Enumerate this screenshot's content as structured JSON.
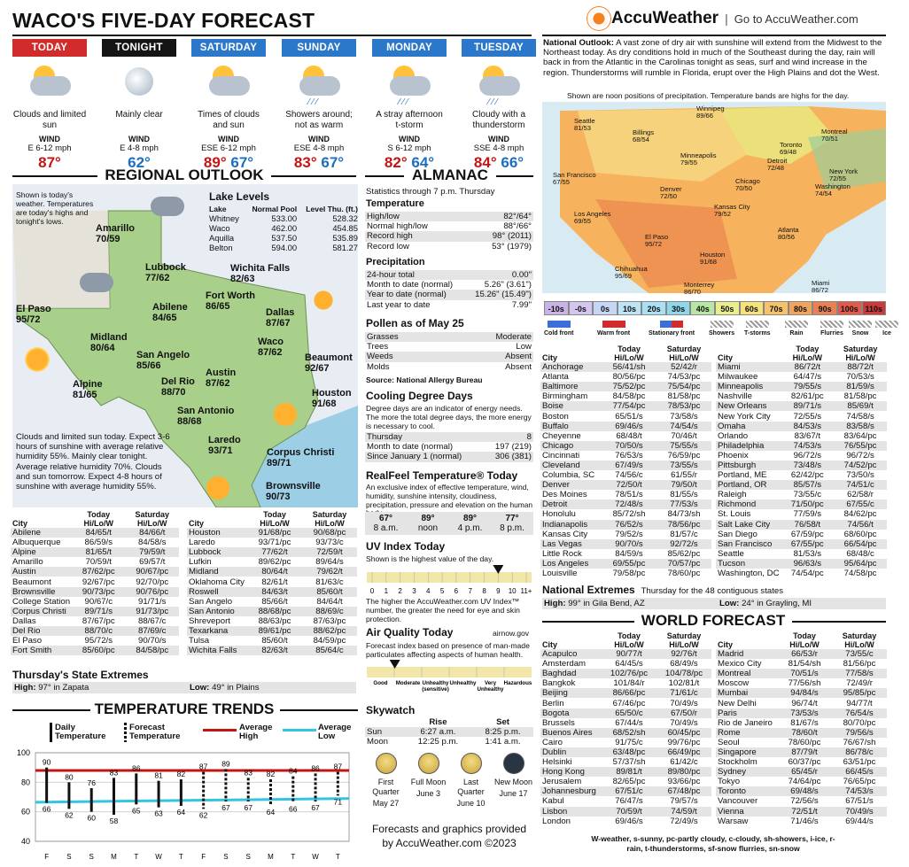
{
  "title": "WACO'S FIVE-DAY FORECAST",
  "brand": {
    "name": "AccuWeather",
    "link": "Go to AccuWeather.com"
  },
  "days": [
    {
      "label": "TODAY",
      "color": "#d12b2b",
      "desc": "Clouds and limited sun",
      "wind_label": "WIND",
      "wind": "E 6-12 mph",
      "hi": "87°",
      "lo": "",
      "icon": "partly-cloudy-icon"
    },
    {
      "label": "TONIGHT",
      "color": "#141414",
      "desc": "Mainly clear",
      "wind_label": "WIND",
      "wind": "E 4-8 mph",
      "hi": "",
      "lo": "62°",
      "icon": "moon-icon"
    },
    {
      "label": "SATURDAY",
      "color": "#2b77c9",
      "desc": "Times of clouds and sun",
      "wind_label": "WIND",
      "wind": "ESE 6-12 mph",
      "hi": "89°",
      "lo": "67°",
      "icon": "partly-cloudy-icon"
    },
    {
      "label": "SUNDAY",
      "color": "#2b77c9",
      "desc": "Showers around; not as warm",
      "wind_label": "WIND",
      "wind": "ESE 4-8 mph",
      "hi": "83°",
      "lo": "67°",
      "icon": "showers-icon"
    },
    {
      "label": "MONDAY",
      "color": "#2b77c9",
      "desc": "A stray afternoon t-storm",
      "wind_label": "WIND",
      "wind": "S 6-12 mph",
      "hi": "82°",
      "lo": "64°",
      "icon": "tstorm-icon"
    },
    {
      "label": "TUESDAY",
      "color": "#2b77c9",
      "desc": "Cloudy with a thunderstorm",
      "wind_label": "WIND",
      "wind": "SSE 4-8 mph",
      "hi": "84°",
      "lo": "66°",
      "icon": "tstorm-icon"
    }
  ],
  "regional": {
    "title": "REGIONAL OUTLOOK",
    "note": "Shown is today's weather. Temperatures are today's highs and tonight's lows.",
    "narrative": "Clouds and limited sun today. Expect 3-6 hours of sunshine with average relative humidity 55%. Mainly clear tonight. Average relative humidity 70%. Clouds and sun tomorrow. Expect 4-8 hours of sunshine with average humidity 55%.",
    "lake_title": "Lake Levels",
    "lake_headers": [
      "Lake",
      "Normal Pool",
      "Level Thu. (ft.)"
    ],
    "lakes": [
      [
        "Whitney",
        "533.00",
        "528.32"
      ],
      [
        "Waco",
        "462.00",
        "454.85"
      ],
      [
        "Aquilla",
        "537.50",
        "535.89"
      ],
      [
        "Belton",
        "594.00",
        "581.27"
      ]
    ],
    "cities": [
      {
        "name": "Amarillo",
        "temps": "70/59"
      },
      {
        "name": "Lubbock",
        "temps": "77/62"
      },
      {
        "name": "Wichita Falls",
        "temps": "82/63"
      },
      {
        "name": "El Paso",
        "temps": "95/72"
      },
      {
        "name": "Abilene",
        "temps": "84/65"
      },
      {
        "name": "Fort Worth",
        "temps": "86/65"
      },
      {
        "name": "Dallas",
        "temps": "87/67"
      },
      {
        "name": "Midland",
        "temps": "80/64"
      },
      {
        "name": "San Angelo",
        "temps": "85/66"
      },
      {
        "name": "Waco",
        "temps": "87/62"
      },
      {
        "name": "Beaumont",
        "temps": "92/67"
      },
      {
        "name": "Alpine",
        "temps": "81/65"
      },
      {
        "name": "Del Rio",
        "temps": "88/70"
      },
      {
        "name": "Austin",
        "temps": "87/62"
      },
      {
        "name": "Houston",
        "temps": "91/68"
      },
      {
        "name": "San Antonio",
        "temps": "88/68"
      },
      {
        "name": "Laredo",
        "temps": "93/71"
      },
      {
        "name": "Corpus Christi",
        "temps": "89/71"
      },
      {
        "name": "Brownsville",
        "temps": "90/73"
      }
    ]
  },
  "tx_table": {
    "headers": [
      "City",
      "Today Hi/Lo/W",
      "Saturday Hi/Lo/W"
    ],
    "left": [
      [
        "Abilene",
        "84/65/t",
        "84/66/t"
      ],
      [
        "Albuquerque",
        "86/59/s",
        "84/58/s"
      ],
      [
        "Alpine",
        "81/65/t",
        "79/59/t"
      ],
      [
        "Amarillo",
        "70/59/t",
        "69/57/t"
      ],
      [
        "Austin",
        "87/62/pc",
        "90/67/pc"
      ],
      [
        "Beaumont",
        "92/67/pc",
        "92/70/pc"
      ],
      [
        "Brownsville",
        "90/73/pc",
        "90/76/pc"
      ],
      [
        "College Station",
        "90/67/c",
        "91/71/s"
      ],
      [
        "Corpus Christi",
        "89/71/s",
        "91/73/pc"
      ],
      [
        "Dallas",
        "87/67/pc",
        "88/67/c"
      ],
      [
        "Del Rio",
        "88/70/c",
        "87/69/c"
      ],
      [
        "El Paso",
        "95/72/s",
        "90/70/s"
      ],
      [
        "Fort Smith",
        "85/60/pc",
        "84/58/pc"
      ]
    ],
    "right": [
      [
        "Houston",
        "91/68/pc",
        "90/68/pc"
      ],
      [
        "Laredo",
        "93/71/pc",
        "93/73/c"
      ],
      [
        "Lubbock",
        "77/62/t",
        "72/59/t"
      ],
      [
        "Lufkin",
        "89/62/pc",
        "89/64/s"
      ],
      [
        "Midland",
        "80/64/t",
        "79/62/t"
      ],
      [
        "Oklahoma City",
        "82/61/t",
        "81/63/c"
      ],
      [
        "Roswell",
        "84/63/t",
        "85/60/t"
      ],
      [
        "San Angelo",
        "85/66/t",
        "84/64/t"
      ],
      [
        "San Antonio",
        "88/68/pc",
        "88/69/c"
      ],
      [
        "Shreveport",
        "88/63/pc",
        "87/63/pc"
      ],
      [
        "Texarkana",
        "89/61/pc",
        "88/62/pc"
      ],
      [
        "Tulsa",
        "85/60/t",
        "84/59/pc"
      ],
      [
        "Wichita Falls",
        "82/63/t",
        "85/64/c"
      ]
    ]
  },
  "state_extremes": {
    "title": "Thursday's State Extremes",
    "high_label": "High:",
    "high": "97° in Zapata",
    "low_label": "Low:",
    "low": "49° in Plains"
  },
  "trends": {
    "title": "TEMPERATURE TRENDS",
    "legend": {
      "daily": "Daily Temperature",
      "forecast": "Forecast Temperature",
      "avg_high": "Average High",
      "avg_low": "Average Low"
    },
    "yticks": [
      "100",
      "80",
      "60",
      "40"
    ],
    "days": [
      "F",
      "S",
      "S",
      "M",
      "T",
      "W",
      "T",
      "F",
      "S",
      "S",
      "M",
      "T",
      "W",
      "T"
    ],
    "highs": [
      90,
      80,
      76,
      83,
      86,
      81,
      82,
      87,
      89,
      83,
      82,
      84,
      86,
      87
    ],
    "lows": [
      66,
      62,
      60,
      58,
      65,
      63,
      64,
      62,
      67,
      67,
      64,
      66,
      67,
      71
    ]
  },
  "almanac": {
    "title": "ALMANAC",
    "stats_note": "Statistics through 7 p.m. Thursday",
    "temp_title": "Temperature",
    "temp": [
      [
        "High/low",
        "82°/64°"
      ],
      [
        "Normal high/low",
        "88°/66°"
      ],
      [
        "Record high",
        "98° (2011)"
      ],
      [
        "Record low",
        "53° (1979)"
      ]
    ],
    "precip_title": "Precipitation",
    "precip": [
      [
        "24-hour total",
        "0.00\""
      ],
      [
        "Month to date (normal)",
        "5.26\" (3.61\")"
      ],
      [
        "Year to date (normal)",
        "15.26\" (15.49\")"
      ],
      [
        "Last year to date",
        "7.99\""
      ]
    ],
    "pollen_title": "Pollen as of May 25",
    "pollen": [
      [
        "Grasses",
        "Moderate"
      ],
      [
        "Trees",
        "Low"
      ],
      [
        "Weeds",
        "Absent"
      ],
      [
        "Molds",
        "Absent"
      ]
    ],
    "pollen_source": "Source: National Allergy Bureau",
    "cdd_title": "Cooling Degree Days",
    "cdd_note": "Degree days are an indicator of energy needs. The more the total degree days, the more energy is necessary to cool.",
    "cdd": [
      [
        "Thursday",
        "8"
      ],
      [
        "Month to date (normal)",
        "197 (219)"
      ],
      [
        "Since January 1 (normal)",
        "306 (381)"
      ]
    ],
    "realfeel_title": "RealFeel Temperature® Today",
    "realfeel_note": "An exclusive index of effective temperature, wind, humidity, sunshine intensity, cloudiness, precipitation, pressure and elevation on the human body.",
    "realfeel": [
      [
        "67°",
        "8 a.m."
      ],
      [
        "89°",
        "noon"
      ],
      [
        "89°",
        "4 p.m."
      ],
      [
        "77°",
        "8 p.m."
      ]
    ],
    "uv_title": "UV Index Today",
    "uv_note": "Shown is the highest value of the day.",
    "uv_value": 9,
    "uv_ticks": [
      "0",
      "1",
      "2",
      "3",
      "4",
      "5",
      "6",
      "7",
      "8",
      "9",
      "10",
      "11+"
    ],
    "uv_footer": "The higher the AccuWeather.com UV Index™ number, the greater the need for eye and skin protection.",
    "aq_title": "Air Quality Today",
    "aq_source": "airnow.gov",
    "aq_note": "Forecast index based on presence of man-made particulates affecting aspects of human health.",
    "aq_labels": [
      "Good",
      "Moderate",
      "Unhealthy (sensitive)",
      "Unhealthy",
      "Very Unhealthy",
      "Hazardous"
    ],
    "aq_level": 0.17,
    "sky_title": "Skywatch",
    "sky_headers": [
      "Rise",
      "Set"
    ],
    "sky": [
      [
        "Sun",
        "6:27 a.m.",
        "8:25 p.m."
      ],
      [
        "Moon",
        "12:25 p.m.",
        "1:41 a.m."
      ]
    ],
    "moons": [
      [
        "First Quarter",
        "May 27"
      ],
      [
        "Full Moon",
        "June 3"
      ],
      [
        "Last Quarter",
        "June 10"
      ],
      [
        "New Moon",
        "June 17"
      ]
    ],
    "credit": "Forecasts and graphics provided by AccuWeather.com ©2023"
  },
  "national": {
    "label": "National Outlook:",
    "text": "A vast zone of dry air with sunshine will extend from the Midwest to the Northeast today. As dry conditions hold in much of the Southeast during the day, rain will back in from the Atlantic in the Carolinas tonight as seas, surf and wind increase in the region. Thunderstorms will rumble in Florida, erupt over the High Plains and dot the West.",
    "map_note": "Shown are noon positions of precipitation. Temperature bands are highs for the day.",
    "map_cities": [
      {
        "name": "Seattle",
        "temps": "81/53"
      },
      {
        "name": "Billings",
        "temps": "68/54"
      },
      {
        "name": "Winnipeg",
        "temps": "89/66"
      },
      {
        "name": "Montreal",
        "temps": "70/51"
      },
      {
        "name": "Minneapolis",
        "temps": "79/55"
      },
      {
        "name": "Toronto",
        "temps": "69/48"
      },
      {
        "name": "Detroit",
        "temps": "72/48"
      },
      {
        "name": "New York",
        "temps": "72/55"
      },
      {
        "name": "San Francisco",
        "temps": "67/55"
      },
      {
        "name": "Denver",
        "temps": "72/50"
      },
      {
        "name": "Chicago",
        "temps": "70/50"
      },
      {
        "name": "Washington",
        "temps": "74/54"
      },
      {
        "name": "Kansas City",
        "temps": "79/52"
      },
      {
        "name": "Los Angeles",
        "temps": "69/55"
      },
      {
        "name": "Atlanta",
        "temps": "80/56"
      },
      {
        "name": "El Paso",
        "temps": "95/72"
      },
      {
        "name": "Houston",
        "temps": "91/68"
      },
      {
        "name": "Chihuahua",
        "temps": "95/69"
      },
      {
        "name": "Monterrey",
        "temps": "86/70"
      },
      {
        "name": "Miami",
        "temps": "86/72"
      }
    ],
    "temp_bands": [
      [
        "-10s",
        "#c9b3e6"
      ],
      [
        "-0s",
        "#d5c6f0"
      ],
      [
        "0s",
        "#c6d6f6"
      ],
      [
        "10s",
        "#bde3f7"
      ],
      [
        "20s",
        "#a9e0f3"
      ],
      [
        "30s",
        "#8fd6ea"
      ],
      [
        "40s",
        "#b8e6a4"
      ],
      [
        "50s",
        "#e8ef8c"
      ],
      [
        "60s",
        "#f7e27a"
      ],
      [
        "70s",
        "#f6c36a"
      ],
      [
        "80s",
        "#f1a45c"
      ],
      [
        "90s",
        "#ec8055"
      ],
      [
        "100s",
        "#e25a4c"
      ],
      [
        "110s",
        "#c93a3a"
      ]
    ],
    "legend": [
      "Cold front",
      "Warm front",
      "Stationary front",
      "Showers",
      "T-storms",
      "Rain",
      "Flurries",
      "Snow",
      "Ice"
    ]
  },
  "us_table": {
    "headers": [
      "City",
      "Today Hi/Lo/W",
      "Saturday Hi/Lo/W"
    ],
    "left": [
      [
        "Anchorage",
        "56/41/sh",
        "52/42/r"
      ],
      [
        "Atlanta",
        "80/56/pc",
        "74/53/pc"
      ],
      [
        "Baltimore",
        "75/52/pc",
        "75/54/pc"
      ],
      [
        "Birmingham",
        "84/58/pc",
        "81/58/pc"
      ],
      [
        "Boise",
        "77/54/pc",
        "78/53/pc"
      ],
      [
        "Boston",
        "65/51/s",
        "73/58/s"
      ],
      [
        "Buffalo",
        "69/46/s",
        "74/54/s"
      ],
      [
        "Cheyenne",
        "68/48/t",
        "70/46/t"
      ],
      [
        "Chicago",
        "70/50/s",
        "75/55/s"
      ],
      [
        "Cincinnati",
        "76/53/s",
        "76/59/pc"
      ],
      [
        "Cleveland",
        "67/49/s",
        "73/55/s"
      ],
      [
        "Columbia, SC",
        "74/56/c",
        "61/55/r"
      ],
      [
        "Denver",
        "72/50/t",
        "79/50/t"
      ],
      [
        "Des Moines",
        "78/51/s",
        "81/55/s"
      ],
      [
        "Detroit",
        "72/48/s",
        "77/53/s"
      ],
      [
        "Honolulu",
        "85/72/sh",
        "84/73/sh"
      ],
      [
        "Indianapolis",
        "76/52/s",
        "78/56/pc"
      ],
      [
        "Kansas City",
        "79/52/s",
        "81/57/c"
      ],
      [
        "Las Vegas",
        "90/70/s",
        "92/72/s"
      ],
      [
        "Little Rock",
        "84/59/s",
        "85/62/pc"
      ],
      [
        "Los Angeles",
        "69/55/pc",
        "70/57/pc"
      ],
      [
        "Louisville",
        "79/58/pc",
        "78/60/pc"
      ]
    ],
    "right": [
      [
        "Miami",
        "86/72/t",
        "88/72/t"
      ],
      [
        "Milwaukee",
        "64/47/s",
        "70/53/s"
      ],
      [
        "Minneapolis",
        "79/55/s",
        "81/59/s"
      ],
      [
        "Nashville",
        "82/61/pc",
        "81/58/pc"
      ],
      [
        "New Orleans",
        "89/71/s",
        "85/69/t"
      ],
      [
        "New York City",
        "72/55/s",
        "74/58/s"
      ],
      [
        "Omaha",
        "84/53/s",
        "83/58/s"
      ],
      [
        "Orlando",
        "83/67/t",
        "83/64/pc"
      ],
      [
        "Philadelphia",
        "74/53/s",
        "76/55/pc"
      ],
      [
        "Phoenix",
        "96/72/s",
        "96/72/s"
      ],
      [
        "Pittsburgh",
        "73/48/s",
        "74/52/pc"
      ],
      [
        "Portland, ME",
        "62/42/pc",
        "73/50/s"
      ],
      [
        "Portland, OR",
        "85/57/s",
        "74/51/c"
      ],
      [
        "Raleigh",
        "73/55/c",
        "62/58/r"
      ],
      [
        "Richmond",
        "71/50/pc",
        "67/55/c"
      ],
      [
        "St. Louis",
        "77/59/s",
        "84/62/pc"
      ],
      [
        "Salt Lake City",
        "76/58/t",
        "74/56/t"
      ],
      [
        "San Diego",
        "67/59/pc",
        "68/60/pc"
      ],
      [
        "San Francisco",
        "67/55/pc",
        "66/54/pc"
      ],
      [
        "Seattle",
        "81/53/s",
        "68/48/c"
      ],
      [
        "Tucson",
        "96/63/s",
        "95/64/pc"
      ],
      [
        "Washington, DC",
        "74/54/pc",
        "74/58/pc"
      ]
    ]
  },
  "nat_extremes": {
    "title": "National Extremes",
    "subtitle": "Thursday for the 48 contiguous states",
    "high_label": "High:",
    "high": "99° in Gila Bend, AZ",
    "low_label": "Low:",
    "low": "24° in Grayling, MI"
  },
  "world": {
    "title": "WORLD FORECAST",
    "headers": [
      "City",
      "Today Hi/Lo/W",
      "Saturday Hi/Lo/W"
    ],
    "left": [
      [
        "Acapulco",
        "90/77/t",
        "92/76/t"
      ],
      [
        "Amsterdam",
        "64/45/s",
        "68/49/s"
      ],
      [
        "Baghdad",
        "102/76/pc",
        "104/78/pc"
      ],
      [
        "Bangkok",
        "101/84/r",
        "102/81/t"
      ],
      [
        "Beijing",
        "86/66/pc",
        "71/61/c"
      ],
      [
        "Berlin",
        "67/46/pc",
        "70/49/s"
      ],
      [
        "Bogota",
        "65/50/c",
        "67/50/r"
      ],
      [
        "Brussels",
        "67/44/s",
        "70/49/s"
      ],
      [
        "Buenos Aires",
        "68/52/sh",
        "60/45/pc"
      ],
      [
        "Cairo",
        "91/75/c",
        "99/76/pc"
      ],
      [
        "Dublin",
        "63/48/pc",
        "66/49/pc"
      ],
      [
        "Helsinki",
        "57/37/sh",
        "61/42/c"
      ],
      [
        "Hong Kong",
        "89/81/t",
        "89/80/pc"
      ],
      [
        "Jerusalem",
        "82/65/pc",
        "93/66/pc"
      ],
      [
        "Johannesburg",
        "67/51/c",
        "67/48/pc"
      ],
      [
        "Kabul",
        "76/47/s",
        "79/57/s"
      ],
      [
        "Lisbon",
        "70/59/t",
        "74/59/t"
      ],
      [
        "London",
        "69/46/s",
        "72/49/s"
      ]
    ],
    "right": [
      [
        "Madrid",
        "66/53/r",
        "73/55/c"
      ],
      [
        "Mexico City",
        "81/54/sh",
        "81/56/pc"
      ],
      [
        "Montreal",
        "70/51/s",
        "77/58/s"
      ],
      [
        "Moscow",
        "77/56/sh",
        "72/49/r"
      ],
      [
        "Mumbai",
        "94/84/s",
        "95/85/pc"
      ],
      [
        "New Delhi",
        "96/74/t",
        "94/77/t"
      ],
      [
        "Paris",
        "73/53/s",
        "76/54/s"
      ],
      [
        "Rio de Janeiro",
        "81/67/s",
        "80/70/pc"
      ],
      [
        "Rome",
        "78/60/t",
        "79/56/s"
      ],
      [
        "Seoul",
        "78/60/pc",
        "76/67/sh"
      ],
      [
        "Singapore",
        "87/79/t",
        "86/78/c"
      ],
      [
        "Stockholm",
        "60/37/pc",
        "63/51/pc"
      ],
      [
        "Sydney",
        "65/45/r",
        "66/45/s"
      ],
      [
        "Tokyo",
        "74/64/pc",
        "76/65/pc"
      ],
      [
        "Toronto",
        "69/48/s",
        "74/53/s"
      ],
      [
        "Vancouver",
        "72/56/s",
        "67/51/s"
      ],
      [
        "Vienna",
        "72/51/t",
        "70/49/s"
      ],
      [
        "Warsaw",
        "71/46/s",
        "69/44/s"
      ]
    ],
    "key": "W-weather, s-sunny, pc-partly cloudy, c-cloudy, sh-showers, i-ice, r-rain, t-thunderstorms, sf-snow flurries, sn-snow"
  }
}
